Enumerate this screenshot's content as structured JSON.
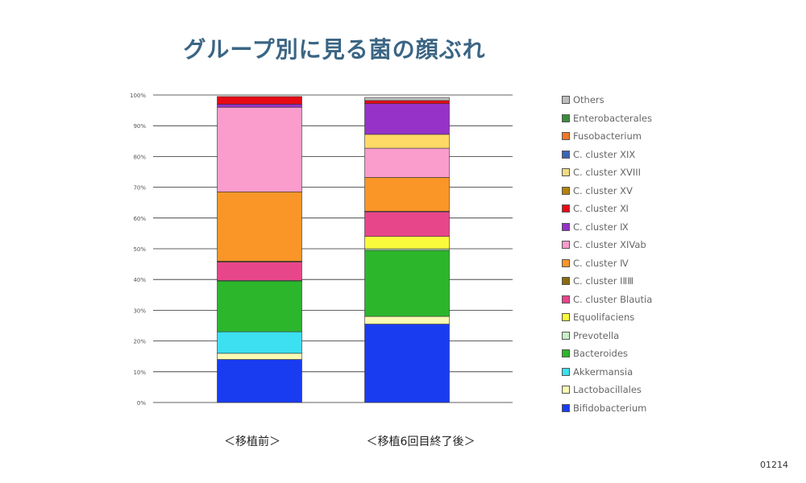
{
  "title": "グループ別に見る菌の顔ぶれ",
  "page_number": "01214",
  "chart_data": {
    "type": "bar",
    "stacked": true,
    "ylim": [
      0,
      100
    ],
    "y_ticks": [
      "0%",
      "10%",
      "20%",
      "30%",
      "40%",
      "50%",
      "60%",
      "70%",
      "80%",
      "90%",
      "100%"
    ],
    "grid": true,
    "legend_position": "right",
    "categories": [
      "＜移植前＞",
      "＜移植6回目終了後＞"
    ],
    "series": [
      {
        "name": "Bifidobacterium",
        "color": "#1a3cf0",
        "values": [
          14,
          25.5
        ]
      },
      {
        "name": "Lactobacillales",
        "color": "#fafab4",
        "values": [
          2,
          2.5
        ]
      },
      {
        "name": "Akkermansia",
        "color": "#3ce0f0",
        "values": [
          7,
          0
        ]
      },
      {
        "name": "Bacteroides",
        "color": "#2cb62c",
        "values": [
          16.5,
          21.5
        ]
      },
      {
        "name": "Prevotella",
        "color": "#c8f0c8",
        "values": [
          0.2,
          0.5
        ]
      },
      {
        "name": "Equolifaciens",
        "color": "#fafa3c",
        "values": [
          0,
          4
        ]
      },
      {
        "name": "C. cluster Blautia",
        "color": "#e8468a",
        "values": [
          6,
          8
        ]
      },
      {
        "name": "C. cluster ⅠⅡⅢ",
        "color": "#8a6a10",
        "values": [
          0.3,
          0.2
        ]
      },
      {
        "name": "C. cluster Ⅳ",
        "color": "#fa9628",
        "values": [
          22.5,
          11
        ]
      },
      {
        "name": "C. cluster XIVab",
        "color": "#fa9ccc",
        "values": [
          27.5,
          9.5
        ]
      },
      {
        "name": "C. cluster Ⅸ",
        "color": "#9632c8",
        "values": [
          1,
          10
        ]
      },
      {
        "name": "C. cluster Ⅺ",
        "color": "#e60a14",
        "values": [
          2.5,
          1
        ]
      },
      {
        "name": "C. cluster XV",
        "color": "#b4820a",
        "values": [
          0,
          0
        ]
      },
      {
        "name": "C. cluster XVIII",
        "color": "#f0dc82",
        "values": [
          0,
          0
        ]
      },
      {
        "name": "C. cluster XIX",
        "color": "#3c64b4",
        "values": [
          0,
          0
        ]
      },
      {
        "name": "Fusobacterium",
        "color": "#f07828",
        "values": [
          0,
          0
        ]
      },
      {
        "name": "Enterobacterales",
        "color": "#3c8c3c",
        "values": [
          0,
          0
        ]
      },
      {
        "name": "Others",
        "color": "#bebebe",
        "values": [
          0,
          1
        ]
      }
    ],
    "extra_segments": [
      {
        "category_index": 0,
        "after_series": "C. cluster ⅠⅡⅢ",
        "color": "#2cb62c",
        "value": 0
      },
      {
        "category_index": 1,
        "after_series": "C. cluster XIVab",
        "color": "#ffd966",
        "value": 4.5
      }
    ]
  },
  "legend_order": [
    "Others",
    "Enterobacterales",
    "Fusobacterium",
    "C. cluster XIX",
    "C. cluster XVIII",
    "C. cluster XV",
    "C. cluster Ⅺ",
    "C. cluster Ⅸ",
    "C. cluster XIVab",
    "C. cluster Ⅳ",
    "C. cluster ⅠⅡⅢ",
    "C. cluster Blautia",
    "Equolifaciens",
    "Prevotella",
    "Bacteroides",
    "Akkermansia",
    "Lactobacillales",
    "Bifidobacterium"
  ]
}
